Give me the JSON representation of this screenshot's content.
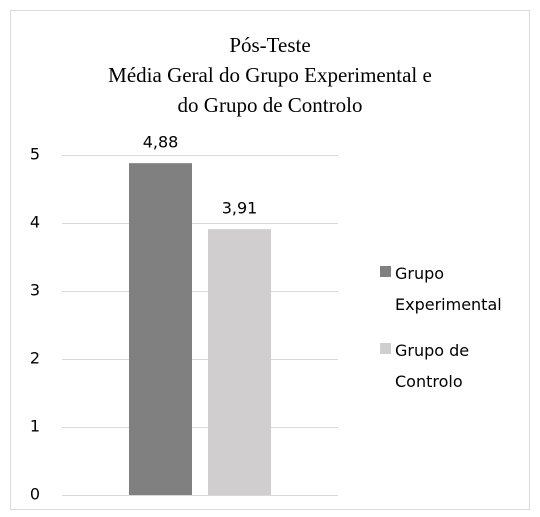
{
  "chart_data": {
    "type": "bar",
    "title": [
      "Pós-Teste",
      "Média Geral do Grupo Experimental e",
      "do Grupo de Controlo"
    ],
    "categories": [
      null
    ],
    "series": [
      {
        "name": "Grupo Experimental",
        "color": "#808080",
        "values": [
          4.88
        ],
        "value_labels": [
          "4,88"
        ]
      },
      {
        "name": "Grupo de Controlo",
        "color": "#d0cece",
        "values": [
          3.91
        ],
        "value_labels": [
          "3,91"
        ]
      }
    ],
    "ylim": [
      0,
      5
    ],
    "yticks": [
      0,
      1,
      2,
      3,
      4,
      5
    ],
    "grid": true,
    "legend": "right"
  }
}
